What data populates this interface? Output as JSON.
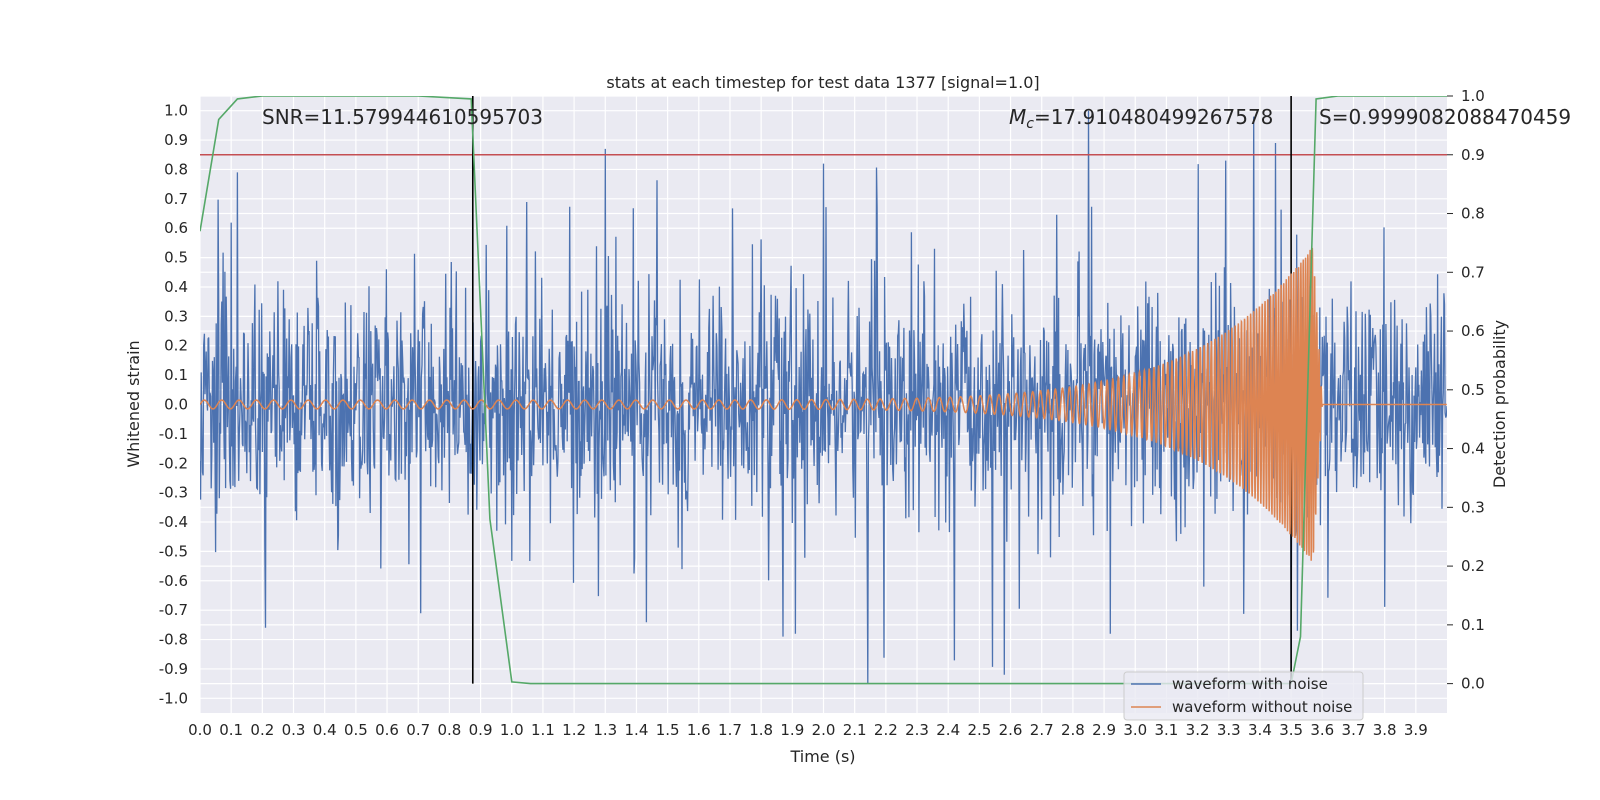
{
  "chart_data": {
    "type": "line",
    "title": "stats at each timestep for test data 1377 [signal=1.0]",
    "xlabel": "Time (s)",
    "ylabel": "Whitened strain",
    "y2label": "Detection probability",
    "xlim": [
      0.0,
      4.0
    ],
    "ylim": [
      -1.05,
      1.05
    ],
    "y2lim": [
      -0.05,
      1.0
    ],
    "x_ticks": [
      "0.0",
      "0.1",
      "0.2",
      "0.3",
      "0.4",
      "0.5",
      "0.6",
      "0.7",
      "0.8",
      "0.9",
      "1.0",
      "1.1",
      "1.2",
      "1.3",
      "1.4",
      "1.5",
      "1.6",
      "1.7",
      "1.8",
      "1.9",
      "2.0",
      "2.1",
      "2.2",
      "2.3",
      "2.4",
      "2.5",
      "2.6",
      "2.7",
      "2.8",
      "2.9",
      "3.0",
      "3.1",
      "3.2",
      "3.3",
      "3.4",
      "3.5",
      "3.6",
      "3.7",
      "3.8",
      "3.9"
    ],
    "y_ticks": [
      "1.0",
      "0.9",
      "0.8",
      "0.7",
      "0.6",
      "0.5",
      "0.4",
      "0.3",
      "0.2",
      "0.1",
      "0.0",
      "-0.1",
      "-0.2",
      "-0.3",
      "-0.4",
      "-0.5",
      "-0.6",
      "-0.7",
      "-0.8",
      "-0.9",
      "-1.0"
    ],
    "y2_ticks": [
      "1.0",
      "0.9",
      "0.8",
      "0.7",
      "0.6",
      "0.5",
      "0.4",
      "0.3",
      "0.2",
      "0.1",
      "0.0"
    ],
    "grid": true,
    "legend_position": "bottom-right",
    "annotations": {
      "snr": "SNR=11.579944610595703",
      "mc_symbol": "M",
      "mc_sub": "c",
      "mc_value": "=17.910480499267578",
      "s": "S=0.9999082088470459"
    },
    "threshold": 0.9,
    "vertical_markers": [
      0.875,
      3.5
    ],
    "noise": {
      "name": "waveform with noise",
      "color": "#4c72b0",
      "typical_amplitude": 0.25,
      "spikes": [
        {
          "x": 0.12,
          "y": 0.79
        },
        {
          "x": 1.3,
          "y": 0.87
        },
        {
          "x": 2.0,
          "y": 0.82
        },
        {
          "x": 2.85,
          "y": 1.0
        },
        {
          "x": 3.29,
          "y": 0.83
        },
        {
          "x": 3.38,
          "y": 0.98
        },
        {
          "x": 3.45,
          "y": 0.89
        },
        {
          "x": 2.58,
          "y": -0.92
        },
        {
          "x": 0.21,
          "y": -0.76
        },
        {
          "x": 1.87,
          "y": -0.79
        },
        {
          "x": 1.91,
          "y": -0.78
        },
        {
          "x": 2.92,
          "y": -0.78
        },
        {
          "x": 3.5,
          "y": -0.88
        },
        {
          "x": 3.52,
          "y": -0.77
        }
      ]
    },
    "clean": {
      "name": "waveform without noise",
      "color": "#dd8452",
      "start_amplitude": 0.015,
      "peak_amplitude": 0.54,
      "peak_time": 3.57,
      "merger_end": 3.6,
      "start_frequency_hz": 18,
      "end_frequency_hz": 140
    },
    "probability": {
      "color": "#55a868",
      "x": [
        0.0,
        0.06,
        0.12,
        0.2,
        0.3,
        0.5,
        0.7,
        0.87,
        0.93,
        1.0,
        1.06,
        1.2,
        2.0,
        3.0,
        3.4,
        3.5,
        3.53,
        3.58,
        3.65,
        3.8,
        4.0
      ],
      "y": [
        0.77,
        0.96,
        0.995,
        1.0,
        1.0,
        1.0,
        1.0,
        0.995,
        0.28,
        0.003,
        0.0,
        0.0,
        0.0,
        0.0,
        0.0,
        0.0,
        0.08,
        0.995,
        1.0,
        1.0,
        1.0
      ]
    },
    "threshold_color": "#c44e52",
    "marker_color": "#000000"
  },
  "colors": {
    "plot_background": "#eaeaf2",
    "grid": "#ffffff",
    "text": "#262626"
  }
}
